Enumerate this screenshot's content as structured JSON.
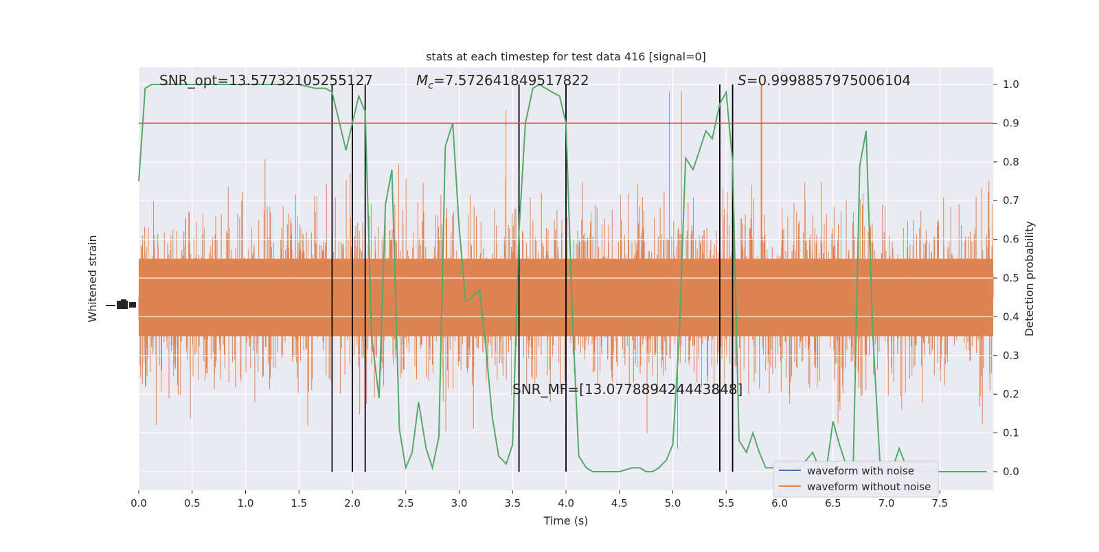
{
  "chart_data": {
    "type": "line",
    "title": "stats at each timestep for test data 416 [signal=0]",
    "xlabel": "Time (s)",
    "ylabel_left": "Whitened strain",
    "ylabel_right": "Detection probability",
    "xlim": [
      0.0,
      8.0
    ],
    "ylim_right": [
      -0.05,
      1.05
    ],
    "x_ticks": [
      "0.0",
      "0.5",
      "1.0",
      "1.5",
      "2.0",
      "2.5",
      "3.0",
      "3.5",
      "4.0",
      "4.5",
      "5.0",
      "5.5",
      "6.0",
      "6.5",
      "7.0",
      "7.5"
    ],
    "y_right_ticks": [
      "0.0",
      "0.1",
      "0.2",
      "0.3",
      "0.4",
      "0.5",
      "0.6",
      "0.7",
      "0.8",
      "0.9",
      "1.0"
    ],
    "grid": true,
    "legend_position": "lower right",
    "legend": [
      {
        "label": "waveform with noise",
        "color": "#4c72b0"
      },
      {
        "label": "waveform without noise",
        "color": "#dd8452"
      }
    ],
    "annotations": {
      "snr_opt": "SNR_opt=13.57732105255127",
      "mc_symbol": "M",
      "mc_subscript": "c",
      "mc_value": "=7.572641849517822",
      "s_symbol": "S",
      "s_value": "=0.9998857975006104",
      "snr_mf": "SNR_MF=[13.077889424443848]"
    },
    "threshold": {
      "value": 0.9,
      "color": "#c44e52"
    },
    "vertical_lines_x": [
      1.81,
      2.0,
      2.12,
      3.56,
      4.0,
      5.44,
      5.56
    ],
    "noise_series": {
      "name": "waveform without noise",
      "color": "#dd8452",
      "note_center": 0.45,
      "typical_range": [
        0.27,
        0.7
      ],
      "extreme_range": [
        0.0,
        1.0
      ]
    },
    "probability_series": {
      "color": "#55a868",
      "x": [
        0.0,
        0.06,
        0.12,
        0.5,
        1.0,
        1.5,
        1.65,
        1.75,
        1.81,
        1.88,
        1.94,
        2.0,
        2.06,
        2.12,
        2.18,
        2.25,
        2.31,
        2.37,
        2.44,
        2.5,
        2.56,
        2.62,
        2.69,
        2.75,
        2.81,
        2.87,
        2.94,
        3.0,
        3.06,
        3.12,
        3.19,
        3.25,
        3.31,
        3.37,
        3.44,
        3.5,
        3.56,
        3.62,
        3.69,
        3.75,
        3.81,
        3.87,
        3.94,
        4.0,
        4.06,
        4.12,
        4.19,
        4.25,
        4.31,
        4.5,
        4.62,
        4.69,
        4.75,
        4.81,
        4.87,
        4.94,
        5.0,
        5.06,
        5.12,
        5.19,
        5.25,
        5.31,
        5.37,
        5.44,
        5.5,
        5.56,
        5.62,
        5.69,
        5.75,
        5.81,
        5.87,
        5.94,
        6.0,
        6.06,
        6.12,
        6.19,
        6.25,
        6.31,
        6.37,
        6.44,
        6.5,
        6.56,
        6.62,
        6.69,
        6.75,
        6.81,
        6.87,
        6.94,
        7.0,
        7.06,
        7.12,
        7.19,
        7.25,
        7.31,
        7.5,
        7.94
      ],
      "y": [
        0.75,
        0.99,
        1.0,
        1.0,
        1.0,
        1.0,
        0.99,
        0.99,
        0.98,
        0.9,
        0.83,
        0.9,
        0.97,
        0.93,
        0.35,
        0.19,
        0.69,
        0.78,
        0.11,
        0.01,
        0.05,
        0.18,
        0.06,
        0.01,
        0.09,
        0.84,
        0.9,
        0.63,
        0.44,
        0.45,
        0.47,
        0.32,
        0.14,
        0.04,
        0.02,
        0.07,
        0.62,
        0.9,
        0.99,
        1.0,
        0.99,
        0.98,
        0.97,
        0.9,
        0.4,
        0.04,
        0.01,
        0.0,
        0.0,
        0.0,
        0.01,
        0.01,
        0.0,
        0.0,
        0.01,
        0.03,
        0.07,
        0.35,
        0.81,
        0.78,
        0.83,
        0.88,
        0.86,
        0.95,
        0.98,
        0.8,
        0.08,
        0.05,
        0.1,
        0.05,
        0.01,
        0.01,
        0.01,
        0.0,
        0.0,
        0.01,
        0.03,
        0.05,
        0.01,
        0.01,
        0.13,
        0.07,
        0.02,
        0.02,
        0.79,
        0.88,
        0.37,
        0.02,
        0.0,
        0.01,
        0.06,
        0.01,
        0.01,
        0.0,
        0.0,
        0.0
      ]
    }
  }
}
